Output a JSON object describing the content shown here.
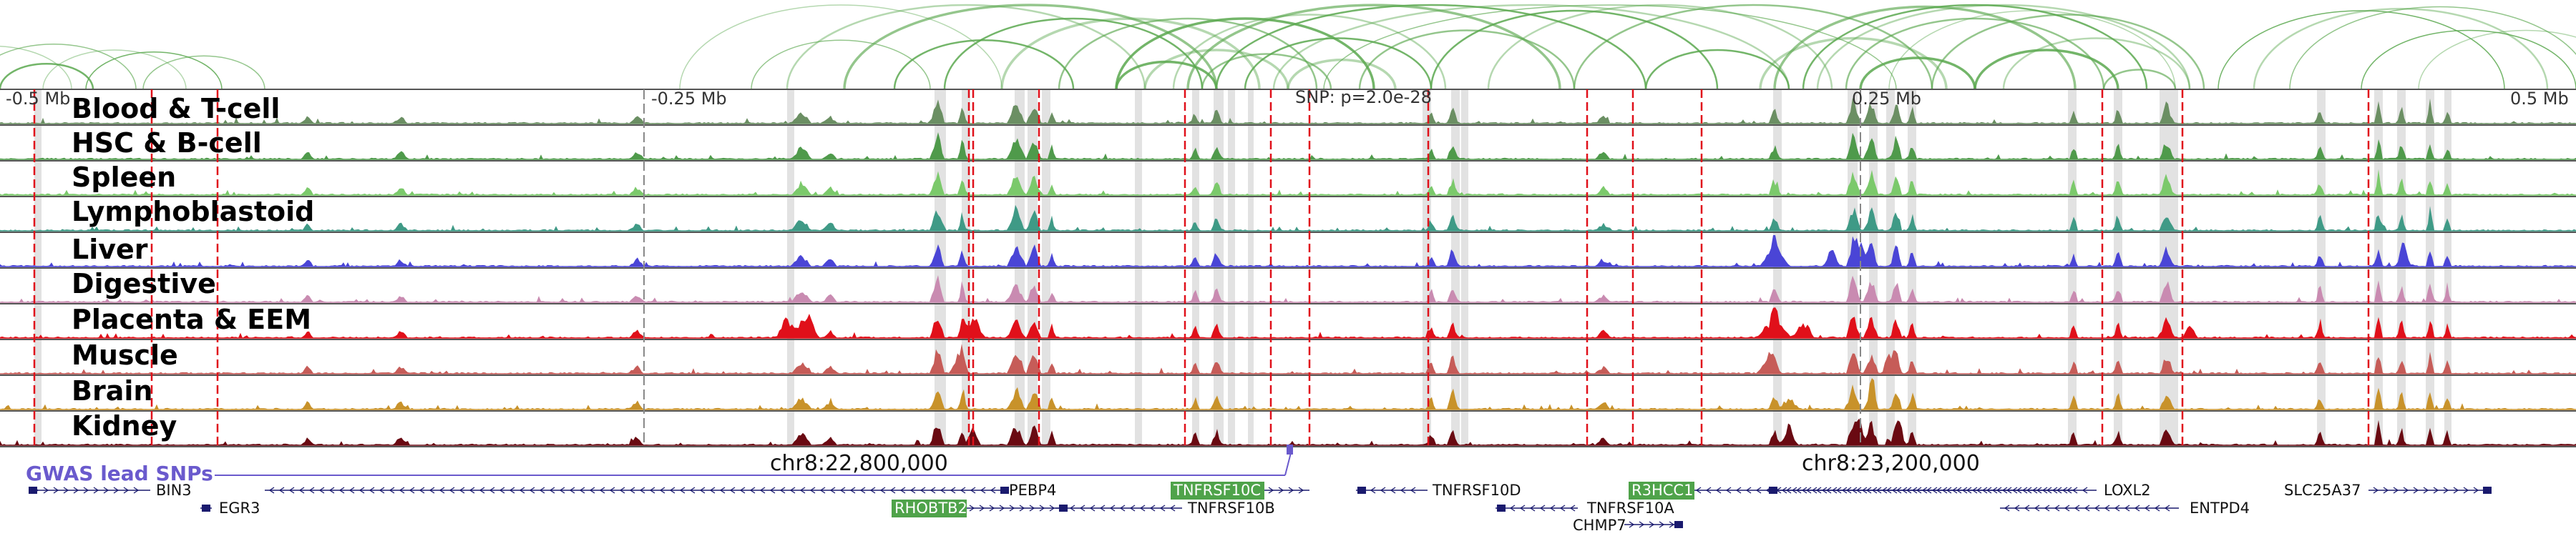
{
  "tracks": [
    {
      "name": "Blood & T-cell",
      "color": "#6b8f63"
    },
    {
      "name": "HSC & B-cell",
      "color": "#4f9a4b"
    },
    {
      "name": "Spleen",
      "color": "#7bc96b"
    },
    {
      "name": "Lymphoblastoid",
      "color": "#3f9a86"
    },
    {
      "name": "Liver",
      "color": "#4a45d6"
    },
    {
      "name": "Digestive",
      "color": "#c98bb1"
    },
    {
      "name": "Placenta & EEM",
      "color": "#e0101a"
    },
    {
      "name": "Muscle",
      "color": "#c65c58"
    },
    {
      "name": "Brain",
      "color": "#c8922a"
    },
    {
      "name": "Kidney",
      "color": "#6a0a12"
    }
  ],
  "axis": {
    "ticks": [
      "-0.5 Mb",
      "-0.25 Mb",
      "0.25 Mb",
      "0.5 Mb"
    ],
    "snp_label": "SNP: p=2.0e-28"
  },
  "gwas_label": "GWAS lead SNPs",
  "gwas_color": "#6a5acd",
  "coordinates": [
    "chr8:22,800,000",
    "chr8:23,200,000"
  ],
  "genes": [
    {
      "name": "BIN3",
      "highlight": false
    },
    {
      "name": "EGR3",
      "highlight": false
    },
    {
      "name": "PEBP4",
      "highlight": false
    },
    {
      "name": "RHOBTB2",
      "highlight": true
    },
    {
      "name": "TNFRSF10C",
      "highlight": true
    },
    {
      "name": "TNFRSF10B",
      "highlight": false
    },
    {
      "name": "TNFRSF10D",
      "highlight": false
    },
    {
      "name": "R3HCC1",
      "highlight": true
    },
    {
      "name": "TNFRSF10A",
      "highlight": false
    },
    {
      "name": "CHMP7",
      "highlight": false
    },
    {
      "name": "LOXL2",
      "highlight": false
    },
    {
      "name": "ENTPD4",
      "highlight": false
    },
    {
      "name": "SLC25A37",
      "highlight": false
    }
  ],
  "colors": {
    "loop": "#5aa84f",
    "highlight_peak": "#dddddd",
    "snp_line": "#e0101a",
    "gene": "#1a1a6e",
    "gene_highlight_bg": "#4fa34a"
  }
}
